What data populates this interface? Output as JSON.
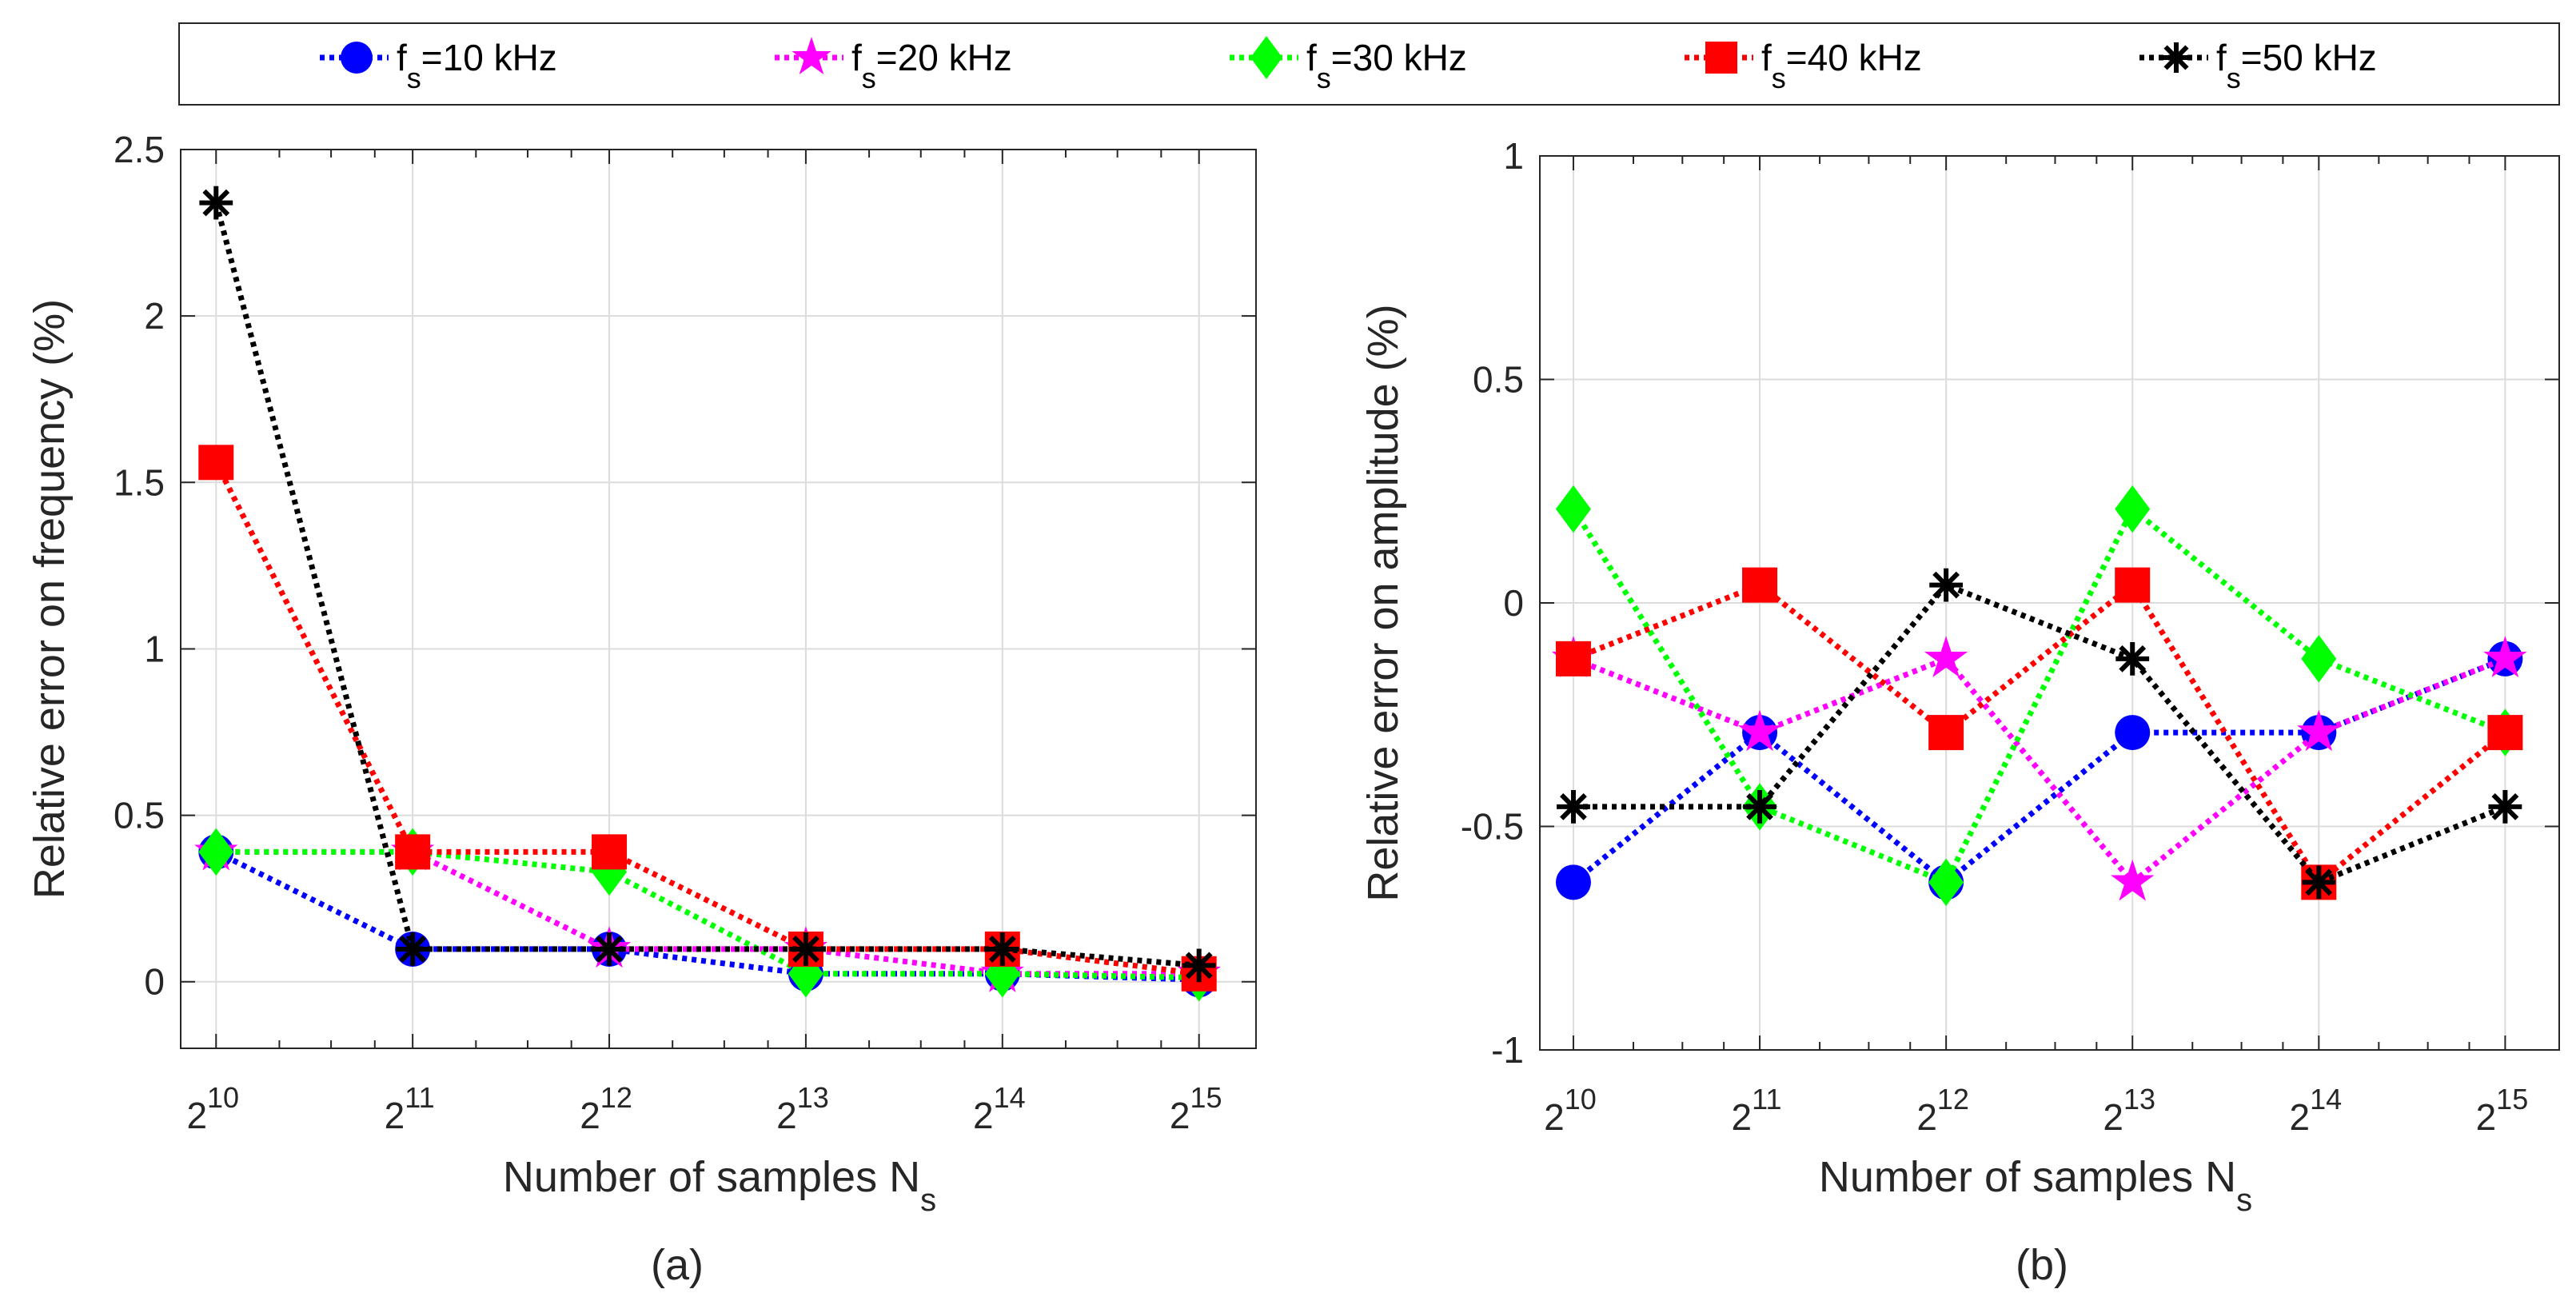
{
  "legend": {
    "entries": [
      {
        "label": "f",
        "sub": "s",
        "rest": "=10 kHz",
        "color": "#0000ff",
        "marker": "circle"
      },
      {
        "label": "f",
        "sub": "s",
        "rest": "=20 kHz",
        "color": "#ff00ff",
        "marker": "star"
      },
      {
        "label": "f",
        "sub": "s",
        "rest": "=30 kHz",
        "color": "#00ff00",
        "marker": "diamond"
      },
      {
        "label": "f",
        "sub": "s",
        "rest": "=40 kHz",
        "color": "#ff0000",
        "marker": "square"
      },
      {
        "label": "f",
        "sub": "s",
        "rest": "=50 kHz",
        "color": "#000000",
        "marker": "asterisk"
      }
    ]
  },
  "chart_data": [
    {
      "type": "line",
      "caption": "(a)",
      "xlabel": "Number of samples N",
      "xlabel_sub": "s",
      "ylabel": "Relative error on frequency (%)",
      "x_log2": [
        10,
        11,
        12,
        13,
        14,
        15
      ],
      "xtick_base": "2",
      "xtick_exponents": [
        "10",
        "11",
        "12",
        "13",
        "14",
        "15"
      ],
      "xlim_log2": [
        9.82,
        15.29
      ],
      "ylim": [
        -0.2,
        2.5
      ],
      "yticks": [
        0,
        0.5,
        1,
        1.5,
        2,
        2.5
      ],
      "ytick_labels": [
        "0",
        "0.5",
        "1",
        "1.5",
        "2",
        "2.5"
      ],
      "grid": true,
      "series": [
        {
          "name": "fs=10 kHz",
          "values": [
            0.39,
            0.098,
            0.098,
            0.024,
            0.024,
            0.006
          ]
        },
        {
          "name": "fs=20 kHz",
          "values": [
            0.39,
            0.39,
            0.098,
            0.098,
            0.024,
            0.024
          ]
        },
        {
          "name": "fs=30 kHz",
          "values": [
            0.39,
            0.39,
            0.33,
            0.024,
            0.024,
            0.012
          ]
        },
        {
          "name": "fs=40 kHz",
          "values": [
            1.56,
            0.39,
            0.39,
            0.098,
            0.098,
            0.024
          ]
        },
        {
          "name": "fs=50 kHz",
          "values": [
            2.34,
            0.098,
            0.098,
            0.098,
            0.098,
            0.049
          ]
        }
      ]
    },
    {
      "type": "line",
      "caption": "(b)",
      "xlabel": "Number of samples N",
      "xlabel_sub": "s",
      "ylabel": "Relative error on amplitude (%)",
      "x_log2": [
        10,
        11,
        12,
        13,
        14,
        15
      ],
      "xtick_base": "2",
      "xtick_exponents": [
        "10",
        "11",
        "12",
        "13",
        "14",
        "15"
      ],
      "xlim_log2": [
        9.82,
        15.29
      ],
      "ylim": [
        -1,
        1
      ],
      "yticks": [
        -1,
        -0.5,
        0,
        0.5,
        1
      ],
      "ytick_labels": [
        "-1",
        "-0.5",
        "0",
        "0.5",
        "1"
      ],
      "grid": true,
      "series": [
        {
          "name": "fs=10 kHz",
          "values": [
            -0.625,
            -0.29,
            -0.625,
            -0.29,
            -0.29,
            -0.125
          ]
        },
        {
          "name": "fs=20 kHz",
          "values": [
            -0.125,
            -0.29,
            -0.125,
            -0.625,
            -0.29,
            -0.125
          ]
        },
        {
          "name": "fs=30 kHz",
          "values": [
            0.21,
            -0.456,
            -0.625,
            0.21,
            -0.125,
            -0.29
          ]
        },
        {
          "name": "fs=40 kHz",
          "values": [
            -0.125,
            0.04,
            -0.29,
            0.04,
            -0.625,
            -0.29
          ]
        },
        {
          "name": "fs=50 kHz",
          "values": [
            -0.456,
            -0.456,
            0.04,
            -0.125,
            -0.625,
            -0.456
          ]
        }
      ]
    }
  ]
}
